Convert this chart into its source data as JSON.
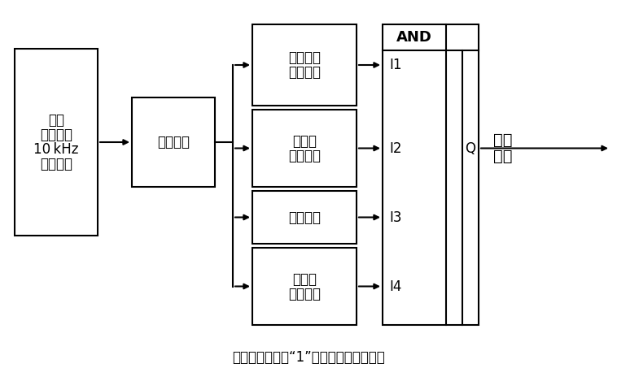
{
  "caption": "保护出口信号为“1”时，判定为线路故障",
  "caption_fontsize": 12,
  "box_color": "black",
  "bg_color": "white",
  "font_color": "black",
  "box1_lines": [
    "读取",
    "电压电流",
    "10 kHz",
    "采样数据"
  ],
  "box2_lines": [
    "启动元件"
  ],
  "box3_lines": [
    "雷击干扰",
    "判别元件"
  ],
  "box4_lines": [
    "暂态量",
    "方向元件"
  ],
  "box5_lines": [
    "边界元件"
  ],
  "box6_lines": [
    "故障极",
    "判别元件"
  ],
  "and_label": "AND",
  "inputs": [
    "I1",
    "I2",
    "I3",
    "I4"
  ],
  "Q_label": "Q",
  "out_lines": [
    "出口",
    "信号"
  ],
  "main_fontsize": 12,
  "lw": 1.5
}
